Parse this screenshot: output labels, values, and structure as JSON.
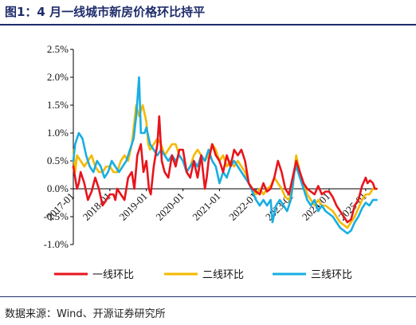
{
  "title": "图1：4 月一线城市新房价格环比持平",
  "source": "数据来源：Wind、开源证券研究所",
  "chart_data": {
    "type": "line",
    "ylim": [
      -1.0,
      2.5
    ],
    "yticks": [
      -1.0,
      -0.5,
      0.0,
      0.5,
      1.0,
      1.5,
      2.0,
      2.5
    ],
    "ytick_labels": [
      "-1.0%",
      "-0.5%",
      "0.0%",
      "0.5%",
      "1.0%",
      "1.5%",
      "2.0%",
      "2.5%"
    ],
    "x_range": [
      2017.0,
      2025.33
    ],
    "xticks": [
      2017.0,
      2018.0,
      2019.0,
      2020.0,
      2021.0,
      2022.0,
      2023.0,
      2024.0,
      2025.0
    ],
    "xtick_labels": [
      "2017-01",
      "2018-01",
      "2019-01",
      "2020-01",
      "2021-01",
      "2022-01",
      "2023-01",
      "2024-01",
      "2025-01"
    ],
    "legend": "bottom",
    "series": [
      {
        "name": "一线环比",
        "color": "#e8141c",
        "points": [
          [
            2017.0,
            0.4
          ],
          [
            2017.05,
            0.2
          ],
          [
            2017.1,
            0.0
          ],
          [
            2017.15,
            0.1
          ],
          [
            2017.2,
            0.3
          ],
          [
            2017.3,
            0.1
          ],
          [
            2017.4,
            -0.2
          ],
          [
            2017.5,
            -0.05
          ],
          [
            2017.6,
            0.2
          ],
          [
            2017.7,
            0.0
          ],
          [
            2017.8,
            -0.3
          ],
          [
            2017.9,
            -0.2
          ],
          [
            2018.0,
            -0.1
          ],
          [
            2018.1,
            -0.1
          ],
          [
            2018.15,
            -0.2
          ],
          [
            2018.2,
            0.0
          ],
          [
            2018.3,
            -0.1
          ],
          [
            2018.4,
            -0.2
          ],
          [
            2018.5,
            0.2
          ],
          [
            2018.6,
            0.3
          ],
          [
            2018.67,
            0.0
          ],
          [
            2018.75,
            0.6
          ],
          [
            2018.85,
            0.8
          ],
          [
            2018.92,
            0.3
          ],
          [
            2019.0,
            0.5
          ],
          [
            2019.07,
            0.0
          ],
          [
            2019.12,
            -0.1
          ],
          [
            2019.2,
            0.4
          ],
          [
            2019.3,
            0.8
          ],
          [
            2019.35,
            1.3
          ],
          [
            2019.42,
            0.5
          ],
          [
            2019.5,
            0.3
          ],
          [
            2019.6,
            0.2
          ],
          [
            2019.7,
            0.6
          ],
          [
            2019.8,
            0.4
          ],
          [
            2019.9,
            0.7
          ],
          [
            2020.0,
            0.7
          ],
          [
            2020.1,
            0.3
          ],
          [
            2020.2,
            0.2
          ],
          [
            2020.3,
            0.5
          ],
          [
            2020.4,
            0.2
          ],
          [
            2020.5,
            0.6
          ],
          [
            2020.55,
            0.3
          ],
          [
            2020.6,
            0.0
          ],
          [
            2020.65,
            0.2
          ],
          [
            2020.7,
            0.5
          ],
          [
            2020.8,
            0.8
          ],
          [
            2020.9,
            0.6
          ],
          [
            2021.0,
            0.5
          ],
          [
            2021.1,
            0.3
          ],
          [
            2021.2,
            0.6
          ],
          [
            2021.3,
            0.4
          ],
          [
            2021.4,
            0.7
          ],
          [
            2021.5,
            0.6
          ],
          [
            2021.6,
            0.7
          ],
          [
            2021.7,
            0.5
          ],
          [
            2021.8,
            0.1
          ],
          [
            2021.9,
            0.0
          ],
          [
            2022.0,
            -0.05
          ],
          [
            2022.1,
            -0.1
          ],
          [
            2022.2,
            0.1
          ],
          [
            2022.3,
            -0.05
          ],
          [
            2022.4,
            0.0
          ],
          [
            2022.5,
            0.2
          ],
          [
            2022.6,
            0.5
          ],
          [
            2022.7,
            0.3
          ],
          [
            2022.8,
            0.0
          ],
          [
            2022.9,
            -0.1
          ],
          [
            2023.0,
            0.2
          ],
          [
            2023.1,
            0.5
          ],
          [
            2023.2,
            0.3
          ],
          [
            2023.3,
            0.1
          ],
          [
            2023.4,
            0.0
          ],
          [
            2023.5,
            -0.05
          ],
          [
            2023.6,
            -0.1
          ],
          [
            2023.7,
            0.05
          ],
          [
            2023.8,
            -0.1
          ],
          [
            2023.9,
            -0.05
          ],
          [
            2024.0,
            -0.05
          ],
          [
            2024.1,
            -0.15
          ],
          [
            2024.2,
            -0.3
          ],
          [
            2024.3,
            -0.4
          ],
          [
            2024.4,
            -0.5
          ],
          [
            2024.5,
            -0.6
          ],
          [
            2024.6,
            -0.55
          ],
          [
            2024.7,
            -0.3
          ],
          [
            2024.8,
            -0.2
          ],
          [
            2024.9,
            0.05
          ],
          [
            2025.0,
            0.2
          ],
          [
            2025.05,
            0.1
          ],
          [
            2025.12,
            0.15
          ],
          [
            2025.2,
            0.1
          ],
          [
            2025.25,
            0.0
          ],
          [
            2025.3,
            0.0
          ]
        ]
      },
      {
        "name": "二线环比",
        "color": "#f6b900",
        "points": [
          [
            2017.0,
            0.7
          ],
          [
            2017.05,
            0.3
          ],
          [
            2017.1,
            0.6
          ],
          [
            2017.2,
            0.5
          ],
          [
            2017.3,
            0.4
          ],
          [
            2017.4,
            0.5
          ],
          [
            2017.5,
            0.6
          ],
          [
            2017.6,
            0.4
          ],
          [
            2017.7,
            0.3
          ],
          [
            2017.8,
            0.3
          ],
          [
            2017.9,
            0.4
          ],
          [
            2018.0,
            0.4
          ],
          [
            2018.1,
            0.3
          ],
          [
            2018.2,
            0.3
          ],
          [
            2018.3,
            0.5
          ],
          [
            2018.4,
            0.6
          ],
          [
            2018.5,
            0.5
          ],
          [
            2018.6,
            0.8
          ],
          [
            2018.67,
            1.2
          ],
          [
            2018.72,
            1.5
          ],
          [
            2018.8,
            1.3
          ],
          [
            2018.9,
            1.5
          ],
          [
            2019.0,
            1.2
          ],
          [
            2019.05,
            0.8
          ],
          [
            2019.1,
            0.7
          ],
          [
            2019.2,
            0.8
          ],
          [
            2019.3,
            0.9
          ],
          [
            2019.4,
            0.8
          ],
          [
            2019.5,
            0.6
          ],
          [
            2019.6,
            0.7
          ],
          [
            2019.7,
            0.8
          ],
          [
            2019.8,
            0.8
          ],
          [
            2019.9,
            0.6
          ],
          [
            2020.0,
            0.5
          ],
          [
            2020.1,
            0.3
          ],
          [
            2020.2,
            0.4
          ],
          [
            2020.3,
            0.6
          ],
          [
            2020.4,
            0.7
          ],
          [
            2020.5,
            0.6
          ],
          [
            2020.6,
            0.5
          ],
          [
            2020.7,
            0.6
          ],
          [
            2020.8,
            0.8
          ],
          [
            2020.9,
            0.7
          ],
          [
            2021.0,
            0.5
          ],
          [
            2021.1,
            0.6
          ],
          [
            2021.2,
            0.4
          ],
          [
            2021.3,
            0.5
          ],
          [
            2021.4,
            0.4
          ],
          [
            2021.5,
            0.5
          ],
          [
            2021.6,
            0.4
          ],
          [
            2021.7,
            0.3
          ],
          [
            2021.8,
            0.1
          ],
          [
            2021.9,
            0.0
          ],
          [
            2022.0,
            -0.1
          ],
          [
            2022.1,
            0.0
          ],
          [
            2022.2,
            -0.1
          ],
          [
            2022.3,
            0.0
          ],
          [
            2022.4,
            0.05
          ],
          [
            2022.5,
            0.2
          ],
          [
            2022.6,
            0.1
          ],
          [
            2022.7,
            0.0
          ],
          [
            2022.8,
            -0.15
          ],
          [
            2022.9,
            -0.2
          ],
          [
            2023.0,
            0.0
          ],
          [
            2023.05,
            0.3
          ],
          [
            2023.1,
            0.6
          ],
          [
            2023.2,
            0.3
          ],
          [
            2023.3,
            0.1
          ],
          [
            2023.4,
            -0.1
          ],
          [
            2023.5,
            -0.2
          ],
          [
            2023.6,
            -0.3
          ],
          [
            2023.7,
            -0.2
          ],
          [
            2023.8,
            -0.3
          ],
          [
            2023.9,
            -0.3
          ],
          [
            2024.0,
            -0.35
          ],
          [
            2024.1,
            -0.4
          ],
          [
            2024.2,
            -0.5
          ],
          [
            2024.3,
            -0.6
          ],
          [
            2024.4,
            -0.65
          ],
          [
            2024.5,
            -0.7
          ],
          [
            2024.6,
            -0.6
          ],
          [
            2024.7,
            -0.5
          ],
          [
            2024.8,
            -0.35
          ],
          [
            2024.9,
            -0.2
          ],
          [
            2025.0,
            -0.1
          ],
          [
            2025.1,
            -0.1
          ],
          [
            2025.2,
            0.0
          ],
          [
            2025.3,
            0.0
          ]
        ]
      },
      {
        "name": "三线环比",
        "color": "#18aee3",
        "points": [
          [
            2017.0,
            0.5
          ],
          [
            2017.05,
            0.8
          ],
          [
            2017.15,
            1.0
          ],
          [
            2017.25,
            0.9
          ],
          [
            2017.35,
            0.6
          ],
          [
            2017.45,
            0.4
          ],
          [
            2017.55,
            0.3
          ],
          [
            2017.65,
            0.5
          ],
          [
            2017.75,
            0.4
          ],
          [
            2017.85,
            0.2
          ],
          [
            2017.95,
            0.3
          ],
          [
            2018.05,
            0.5
          ],
          [
            2018.15,
            0.4
          ],
          [
            2018.25,
            0.3
          ],
          [
            2018.35,
            0.4
          ],
          [
            2018.45,
            0.5
          ],
          [
            2018.55,
            0.7
          ],
          [
            2018.65,
            0.9
          ],
          [
            2018.72,
            1.3
          ],
          [
            2018.8,
            2.0
          ],
          [
            2018.85,
            1.0
          ],
          [
            2018.95,
            1.0
          ],
          [
            2019.0,
            1.1
          ],
          [
            2019.1,
            0.8
          ],
          [
            2019.2,
            0.7
          ],
          [
            2019.3,
            0.6
          ],
          [
            2019.4,
            0.7
          ],
          [
            2019.5,
            0.6
          ],
          [
            2019.6,
            0.5
          ],
          [
            2019.7,
            0.6
          ],
          [
            2019.8,
            0.5
          ],
          [
            2019.9,
            0.6
          ],
          [
            2020.0,
            0.5
          ],
          [
            2020.1,
            0.3
          ],
          [
            2020.2,
            0.4
          ],
          [
            2020.3,
            0.5
          ],
          [
            2020.4,
            0.4
          ],
          [
            2020.5,
            0.6
          ],
          [
            2020.6,
            0.5
          ],
          [
            2020.7,
            0.7
          ],
          [
            2020.8,
            0.5
          ],
          [
            2020.9,
            0.4
          ],
          [
            2021.0,
            0.1
          ],
          [
            2021.1,
            0.3
          ],
          [
            2021.2,
            0.2
          ],
          [
            2021.3,
            0.4
          ],
          [
            2021.4,
            0.5
          ],
          [
            2021.5,
            0.4
          ],
          [
            2021.6,
            0.3
          ],
          [
            2021.7,
            0.2
          ],
          [
            2021.8,
            0.1
          ],
          [
            2021.9,
            -0.05
          ],
          [
            2022.0,
            -0.2
          ],
          [
            2022.1,
            -0.3
          ],
          [
            2022.2,
            -0.2
          ],
          [
            2022.3,
            -0.3
          ],
          [
            2022.4,
            -0.2
          ],
          [
            2022.45,
            -0.6
          ],
          [
            2022.55,
            -0.3
          ],
          [
            2022.65,
            -0.2
          ],
          [
            2022.75,
            -0.3
          ],
          [
            2022.85,
            -0.4
          ],
          [
            2022.95,
            -0.2
          ],
          [
            2023.05,
            0.3
          ],
          [
            2023.1,
            0.4
          ],
          [
            2023.2,
            0.2
          ],
          [
            2023.3,
            0.0
          ],
          [
            2023.4,
            -0.2
          ],
          [
            2023.5,
            -0.3
          ],
          [
            2023.6,
            -0.2
          ],
          [
            2023.7,
            -0.4
          ],
          [
            2023.8,
            -0.3
          ],
          [
            2023.9,
            -0.4
          ],
          [
            2024.0,
            -0.45
          ],
          [
            2024.1,
            -0.5
          ],
          [
            2024.2,
            -0.6
          ],
          [
            2024.3,
            -0.7
          ],
          [
            2024.4,
            -0.75
          ],
          [
            2024.5,
            -0.8
          ],
          [
            2024.6,
            -0.75
          ],
          [
            2024.7,
            -0.6
          ],
          [
            2024.8,
            -0.5
          ],
          [
            2024.9,
            -0.35
          ],
          [
            2025.0,
            -0.25
          ],
          [
            2025.1,
            -0.3
          ],
          [
            2025.2,
            -0.2
          ],
          [
            2025.3,
            -0.2
          ]
        ]
      }
    ]
  }
}
